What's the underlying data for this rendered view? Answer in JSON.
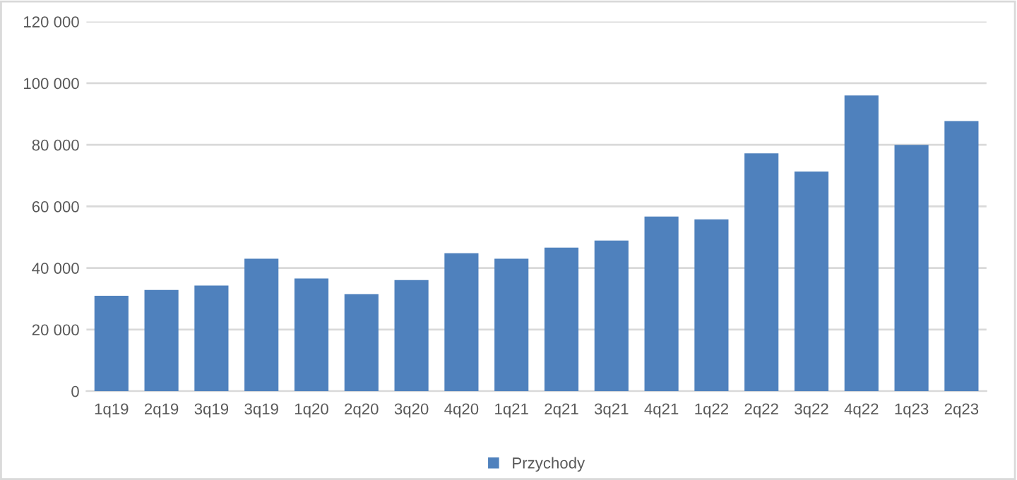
{
  "chart_data": {
    "type": "bar",
    "categories": [
      "1q19",
      "2q19",
      "3q19",
      "3q19",
      "1q20",
      "2q20",
      "3q20",
      "4q20",
      "1q21",
      "2q21",
      "3q21",
      "4q21",
      "1q22",
      "2q22",
      "3q22",
      "4q22",
      "1q23",
      "2q23"
    ],
    "series": [
      {
        "name": "Przychody",
        "color": "#4f81bd",
        "values": [
          31000,
          32900,
          34300,
          43000,
          36600,
          31500,
          36100,
          44800,
          43000,
          46600,
          48900,
          56700,
          55800,
          77200,
          71300,
          96000,
          80000,
          87700
        ]
      }
    ],
    "ylim": [
      0,
      120000
    ],
    "yticks": [
      {
        "value": 0,
        "label": "0"
      },
      {
        "value": 20000,
        "label": "20 000"
      },
      {
        "value": 40000,
        "label": "40 000"
      },
      {
        "value": 60000,
        "label": "60 000"
      },
      {
        "value": 80000,
        "label": "80 000"
      },
      {
        "value": 100000,
        "label": "100 000"
      },
      {
        "value": 120000,
        "label": "120 000"
      }
    ],
    "grid": "y",
    "legend": "bottom"
  }
}
